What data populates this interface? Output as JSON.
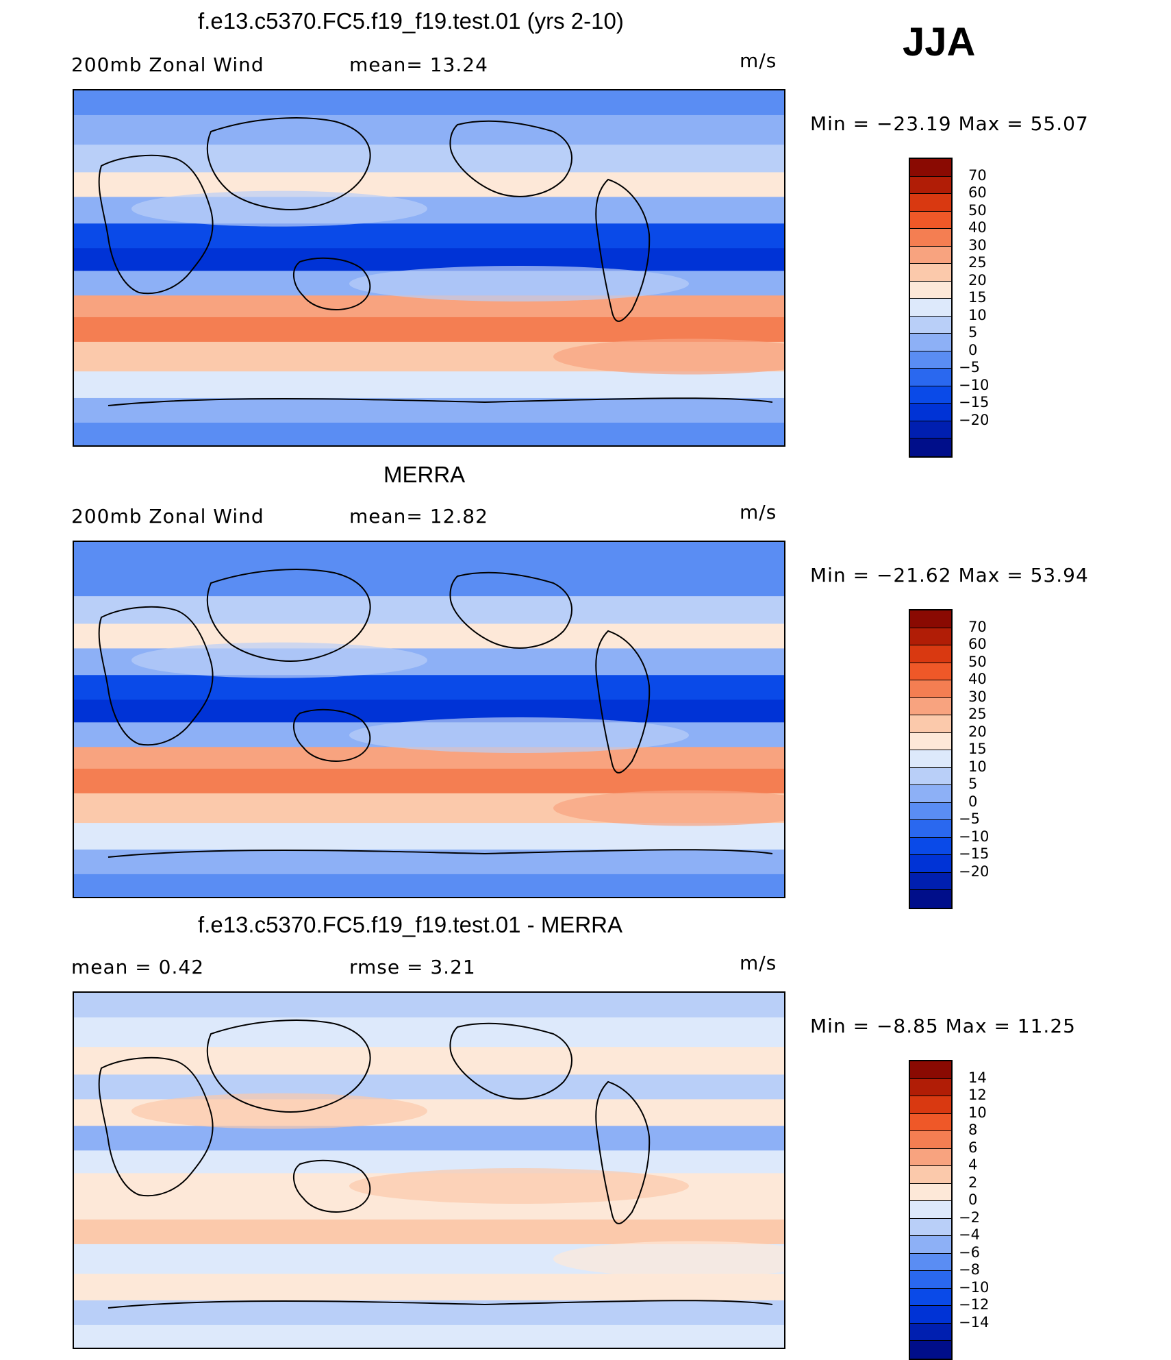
{
  "season": "JJA",
  "colors": {
    "full_scale": [
      "#000e8a",
      "#001fb0",
      "#0033d6",
      "#0a4ae8",
      "#2a68ef",
      "#5a8df3",
      "#8db0f6",
      "#b9cff8",
      "#dde9fb",
      "#fde8d8",
      "#fbc9ab",
      "#f8a37f",
      "#f47e52",
      "#ef5828",
      "#d93911",
      "#b11d06",
      "#8a0a02"
    ],
    "diff_scale": [
      "#000e8a",
      "#001fb0",
      "#0033d6",
      "#0a4ae8",
      "#2a68ef",
      "#5a8df3",
      "#8db0f6",
      "#b9cff8",
      "#dde9fb",
      "#fde8d8",
      "#fbc9ab",
      "#f8a37f",
      "#f47e52",
      "#ef5828",
      "#d93911",
      "#b11d06",
      "#8a0a02"
    ]
  },
  "panels": [
    {
      "title": "f.e13.c5370.FC5.f19_f19.test.01 (yrs 2-10)",
      "stat1": "200mb Zonal Wind",
      "stat2": "mean=  13.24",
      "units": "m/s",
      "minmax": "Min = −23.19 Max =  55.07"
    },
    {
      "title": "MERRA",
      "stat1": "200mb Zonal Wind",
      "stat2": "mean=  12.82",
      "units": "m/s",
      "minmax": "Min = −21.62 Max =  53.94"
    },
    {
      "title": "f.e13.c5370.FC5.f19_f19.test.01 - MERRA",
      "stat1": "mean =    0.42",
      "stat2": "rmse =    3.21",
      "units": "m/s",
      "minmax": "Min =  −8.85 Max =  11.25"
    }
  ],
  "chart_data": [
    {
      "type": "heatmap",
      "title": "f.e13.c5370.FC5.f19_f19.test.01 (yrs 2-10)",
      "variable": "200mb Zonal Wind",
      "units": "m/s",
      "mean": 13.24,
      "min": -23.19,
      "max": 55.07,
      "colorbar_levels": [
        "70",
        "60",
        "50",
        "40",
        "30",
        "25",
        "20",
        "15",
        "10",
        "5",
        "0",
        "−5",
        "−10",
        "−15",
        "−20"
      ],
      "bands": [
        {
          "lat": 85,
          "value": 2
        },
        {
          "lat": 70,
          "value": 5
        },
        {
          "lat": 55,
          "value": 12
        },
        {
          "lat": 42,
          "value": 22
        },
        {
          "lat": 30,
          "value": 8
        },
        {
          "lat": 15,
          "value": -8
        },
        {
          "lat": 5,
          "value": -14
        },
        {
          "lat": -8,
          "value": 5
        },
        {
          "lat": -20,
          "value": 30
        },
        {
          "lat": -30,
          "value": 45
        },
        {
          "lat": -45,
          "value": 28
        },
        {
          "lat": -60,
          "value": 16
        },
        {
          "lat": -72,
          "value": 8
        },
        {
          "lat": -85,
          "value": 2
        }
      ]
    },
    {
      "type": "heatmap",
      "title": "MERRA",
      "variable": "200mb Zonal Wind",
      "units": "m/s",
      "mean": 12.82,
      "min": -21.62,
      "max": 53.94,
      "colorbar_levels": [
        "70",
        "60",
        "50",
        "40",
        "30",
        "25",
        "20",
        "15",
        "10",
        "5",
        "0",
        "−5",
        "−10",
        "−15",
        "−20"
      ],
      "bands": [
        {
          "lat": 85,
          "value": 0
        },
        {
          "lat": 70,
          "value": 4
        },
        {
          "lat": 55,
          "value": 10
        },
        {
          "lat": 42,
          "value": 20
        },
        {
          "lat": 30,
          "value": 6
        },
        {
          "lat": 15,
          "value": -10
        },
        {
          "lat": 5,
          "value": -15
        },
        {
          "lat": -8,
          "value": 6
        },
        {
          "lat": -20,
          "value": 32
        },
        {
          "lat": -30,
          "value": 44
        },
        {
          "lat": -45,
          "value": 26
        },
        {
          "lat": -60,
          "value": 15
        },
        {
          "lat": -72,
          "value": 6
        },
        {
          "lat": -85,
          "value": 0
        }
      ]
    },
    {
      "type": "heatmap",
      "title": "f.e13.c5370.FC5.f19_f19.test.01 - MERRA",
      "units": "m/s",
      "mean": 0.42,
      "rmse": 3.21,
      "min": -8.85,
      "max": 11.25,
      "colorbar_levels": [
        "14",
        "12",
        "10",
        "8",
        "6",
        "4",
        "2",
        "0",
        "−2",
        "−4",
        "−6",
        "−8",
        "−10",
        "−12",
        "−14"
      ],
      "bands": [
        {
          "lat": 85,
          "value": -1
        },
        {
          "lat": 70,
          "value": 1
        },
        {
          "lat": 55,
          "value": 2
        },
        {
          "lat": 42,
          "value": -2
        },
        {
          "lat": 30,
          "value": 3
        },
        {
          "lat": 15,
          "value": -3
        },
        {
          "lat": 5,
          "value": 1
        },
        {
          "lat": -8,
          "value": 2
        },
        {
          "lat": -20,
          "value": 2
        },
        {
          "lat": -30,
          "value": 4
        },
        {
          "lat": -45,
          "value": 1
        },
        {
          "lat": -60,
          "value": 2
        },
        {
          "lat": -72,
          "value": -1
        },
        {
          "lat": -85,
          "value": 0
        }
      ]
    }
  ]
}
